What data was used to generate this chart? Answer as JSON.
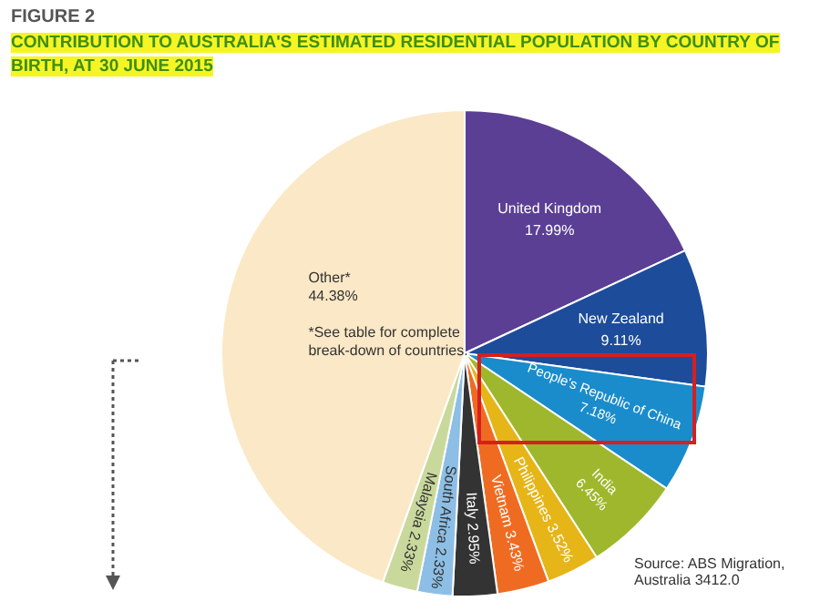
{
  "chart_data": {
    "type": "pie",
    "title": "FIGURE 2",
    "subtitle": "CONTRIBUTION TO AUSTRALIA'S ESTIMATED RESIDENTIAL POPULATION BY COUNTRY OF BIRTH, AT 30 JUNE 2015",
    "categories": [
      "United Kingdom",
      "New Zealand",
      "People's Republic of China",
      "India",
      "Philippines",
      "Vietnam",
      "Italy",
      "South Africa",
      "Malaysia",
      "Other*"
    ],
    "values": [
      17.99,
      9.11,
      7.18,
      6.45,
      3.52,
      3.43,
      2.95,
      2.33,
      2.33,
      44.38
    ],
    "value_labels": [
      "17.99%",
      "9.11%",
      "7.18%",
      "6.45%",
      "3.52%",
      "3.43%",
      "2.95%",
      "2.33%",
      "2.33%",
      "44.38%"
    ],
    "colors": [
      "#5b3f94",
      "#1d4c9a",
      "#1a8ccc",
      "#9fb72c",
      "#e6b517",
      "#f06b22",
      "#333333",
      "#8dbfe6",
      "#c9d99c",
      "#fbe8c6"
    ],
    "annotations": [
      "*See table for complete break-down of countries.",
      "Source: ABS Migration, Australia 3412.0"
    ],
    "legend": false
  }
}
